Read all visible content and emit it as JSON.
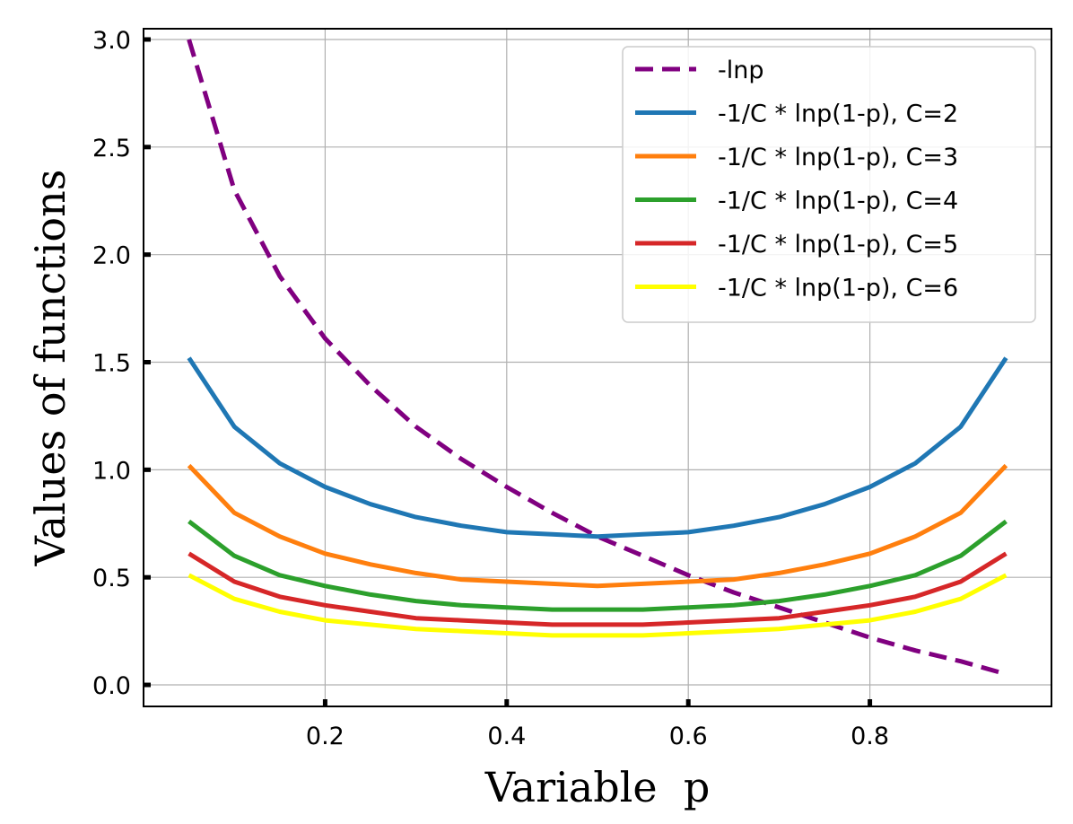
{
  "chart_data": {
    "type": "line",
    "xlabel": "Variable  p",
    "ylabel": "Values of functions",
    "xlim": [
      0.0,
      1.0
    ],
    "ylim": [
      -0.1,
      3.05
    ],
    "xticks": [
      {
        "value": 0.2,
        "label": "0.2"
      },
      {
        "value": 0.4,
        "label": "0.4"
      },
      {
        "value": 0.6,
        "label": "0.6"
      },
      {
        "value": 0.8,
        "label": "0.8"
      }
    ],
    "yticks": [
      {
        "value": 0.0,
        "label": "0.0"
      },
      {
        "value": 0.5,
        "label": "0.5"
      },
      {
        "value": 1.0,
        "label": "1.0"
      },
      {
        "value": 1.5,
        "label": "1.5"
      },
      {
        "value": 2.0,
        "label": "2.0"
      },
      {
        "value": 2.5,
        "label": "2.5"
      },
      {
        "value": 3.0,
        "label": "3.0"
      }
    ],
    "grid": true,
    "legend_position": "top-right",
    "x": [
      0.05,
      0.1,
      0.15,
      0.2,
      0.25,
      0.3,
      0.35,
      0.4,
      0.45,
      0.5,
      0.55,
      0.6,
      0.65,
      0.7,
      0.75,
      0.8,
      0.85,
      0.9,
      0.95
    ],
    "series": [
      {
        "name": "-lnp",
        "color": "#800080",
        "dashed": true,
        "values": [
          3.0,
          2.3,
          1.9,
          1.61,
          1.39,
          1.2,
          1.05,
          0.92,
          0.8,
          0.69,
          0.6,
          0.51,
          0.43,
          0.36,
          0.29,
          0.22,
          0.16,
          0.11,
          0.05
        ]
      },
      {
        "name": "-1/C * lnp(1-p), C=2",
        "color": "#1f77b4",
        "dashed": false,
        "values": [
          1.52,
          1.2,
          1.03,
          0.92,
          0.84,
          0.78,
          0.74,
          0.71,
          0.7,
          0.69,
          0.7,
          0.71,
          0.74,
          0.78,
          0.84,
          0.92,
          1.03,
          1.2,
          1.52
        ]
      },
      {
        "name": "-1/C * lnp(1-p), C=3",
        "color": "#ff7f0e",
        "dashed": false,
        "values": [
          1.02,
          0.8,
          0.69,
          0.61,
          0.56,
          0.52,
          0.49,
          0.48,
          0.47,
          0.46,
          0.47,
          0.48,
          0.49,
          0.52,
          0.56,
          0.61,
          0.69,
          0.8,
          1.02
        ]
      },
      {
        "name": "-1/C * lnp(1-p), C=4",
        "color": "#2ca02c",
        "dashed": false,
        "values": [
          0.76,
          0.6,
          0.51,
          0.46,
          0.42,
          0.39,
          0.37,
          0.36,
          0.35,
          0.35,
          0.35,
          0.36,
          0.37,
          0.39,
          0.42,
          0.46,
          0.51,
          0.6,
          0.76
        ]
      },
      {
        "name": "-1/C * lnp(1-p), C=5",
        "color": "#d62728",
        "dashed": false,
        "values": [
          0.61,
          0.48,
          0.41,
          0.37,
          0.34,
          0.31,
          0.3,
          0.29,
          0.28,
          0.28,
          0.28,
          0.29,
          0.3,
          0.31,
          0.34,
          0.37,
          0.41,
          0.48,
          0.61
        ]
      },
      {
        "name": "-1/C * lnp(1-p), C=6",
        "color": "#ffff00",
        "dashed": false,
        "values": [
          0.51,
          0.4,
          0.34,
          0.3,
          0.28,
          0.26,
          0.25,
          0.24,
          0.23,
          0.23,
          0.23,
          0.24,
          0.25,
          0.26,
          0.28,
          0.3,
          0.34,
          0.4,
          0.51
        ]
      }
    ]
  }
}
